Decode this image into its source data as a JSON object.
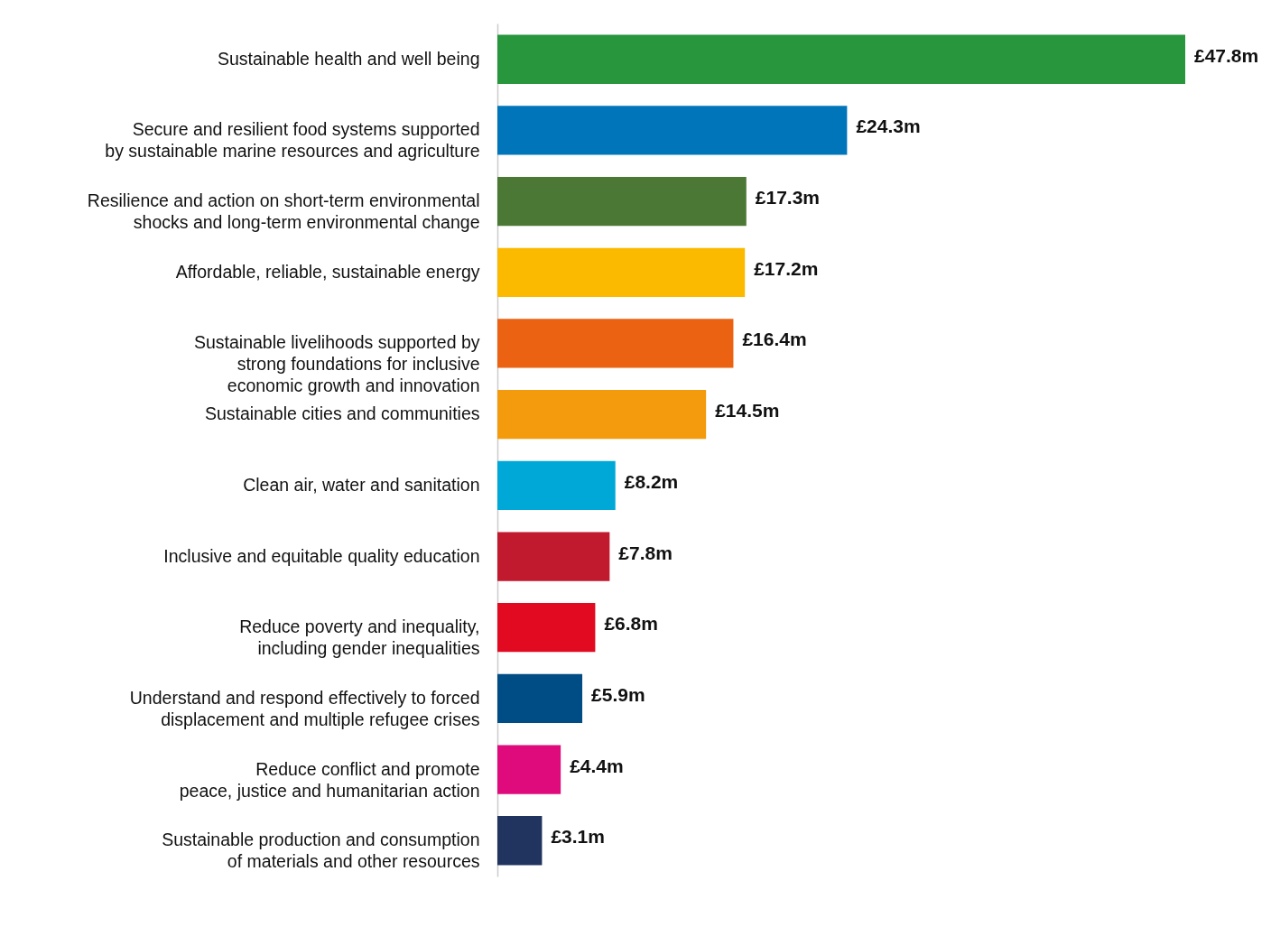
{
  "chart_data": {
    "type": "bar",
    "orientation": "horizontal",
    "categories": [
      "Sustainable health and well being",
      "Secure and resilient food systems supported\nby sustainable marine resources and agriculture",
      "Resilience and action on short-term environmental\nshocks and long-term environmental change",
      "Affordable, reliable, sustainable energy",
      "Sustainable livelihoods supported by\nstrong foundations for inclusive\neconomic growth and innovation",
      "Sustainable cities and communities",
      "Clean air, water and sanitation",
      "Inclusive and equitable quality education",
      "Reduce poverty and inequality,\nincluding gender inequalities",
      "Understand and respond effectively to forced\ndisplacement and multiple refugee crises",
      "Reduce conflict and promote\npeace, justice and humanitarian action",
      "Sustainable production and consumption\nof materials and other resources"
    ],
    "values": [
      47.8,
      24.3,
      17.3,
      17.2,
      16.4,
      14.5,
      8.2,
      7.8,
      6.8,
      5.9,
      4.4,
      3.1
    ],
    "value_labels": [
      "£47.8m",
      "£24.3m",
      "£17.3m",
      "£17.2m",
      "£16.4m",
      "£14.5m",
      "£8.2m",
      "£7.8m",
      "£6.8m",
      "£5.9m",
      "£4.4m",
      "£3.1m"
    ],
    "colors": [
      "#27963c",
      "#0075b9",
      "#4b7834",
      "#fbb900",
      "#ea6212",
      "#f39b0c",
      "#00a8d8",
      "#c1192d",
      "#e10a20",
      "#004c84",
      "#df0b7c",
      "#21335f"
    ],
    "grid": false
  }
}
